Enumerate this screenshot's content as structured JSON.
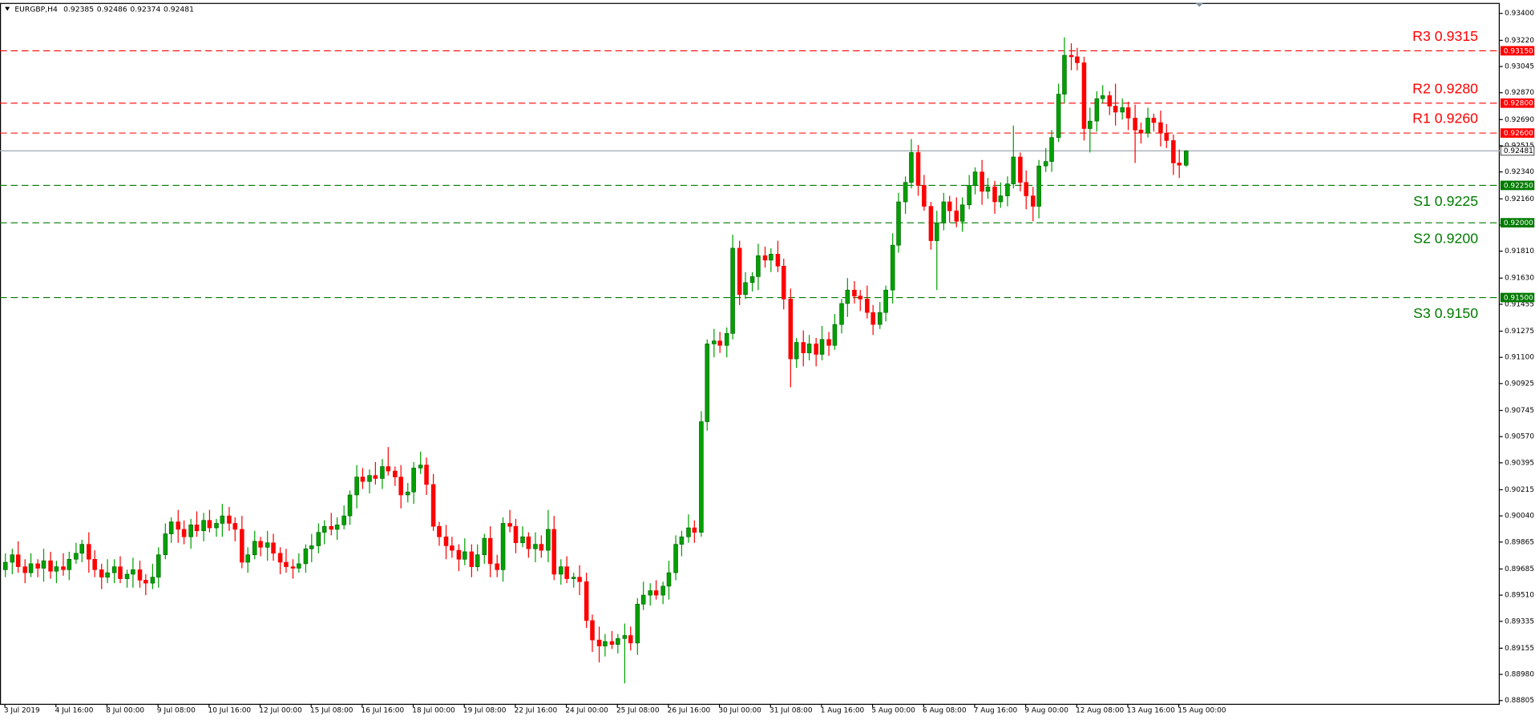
{
  "chart_data": {
    "type": "candlestick",
    "title": "EURGBP,H4",
    "up_color": "#00a000",
    "down_color": "#ff0000",
    "xlim": [
      -0.77,
      234.3
    ],
    "ylim": [
      0.8878,
      0.9347
    ],
    "xticks": [
      {
        "value": 0,
        "label": "3 Jul 2019"
      },
      {
        "value": 8,
        "label": "4 Jul 16:00"
      },
      {
        "value": 16,
        "label": "8 Jul 00:00"
      },
      {
        "value": 24,
        "label": "9 Jul 08:00"
      },
      {
        "value": 32,
        "label": "10 Jul 16:00"
      },
      {
        "value": 40,
        "label": "12 Jul 00:00"
      },
      {
        "value": 48,
        "label": "15 Jul 08:00"
      },
      {
        "value": 56,
        "label": "16 Jul 16:00"
      },
      {
        "value": 64,
        "label": "18 Jul 00:00"
      },
      {
        "value": 72,
        "label": "19 Jul 08:00"
      },
      {
        "value": 80,
        "label": "22 Jul 16:00"
      },
      {
        "value": 88,
        "label": "24 Jul 00:00"
      },
      {
        "value": 96,
        "label": "25 Jul 08:00"
      },
      {
        "value": 104,
        "label": "26 Jul 16:00"
      },
      {
        "value": 112,
        "label": "30 Jul 00:00"
      },
      {
        "value": 120,
        "label": "31 Jul 08:00"
      },
      {
        "value": 128,
        "label": "1 Aug 16:00"
      },
      {
        "value": 136,
        "label": "5 Aug 00:00"
      },
      {
        "value": 144,
        "label": "6 Aug 08:00"
      },
      {
        "value": 152,
        "label": "7 Aug 16:00"
      },
      {
        "value": 160,
        "label": "9 Aug 00:00"
      },
      {
        "value": 168,
        "label": "12 Aug 08:00"
      },
      {
        "value": 176,
        "label": "13 Aug 16:00"
      },
      {
        "value": 184,
        "label": "15 Aug 00:00"
      }
    ],
    "yticks": [
      {
        "value": 0.934,
        "label": "0.93400"
      },
      {
        "value": 0.9322,
        "label": "0.93220"
      },
      {
        "value": 0.93045,
        "label": "0.93045"
      },
      {
        "value": 0.9287,
        "label": "0.92870"
      },
      {
        "value": 0.9269,
        "label": "0.92690"
      },
      {
        "value": 0.92515,
        "label": "0.92515"
      },
      {
        "value": 0.9234,
        "label": "0.92340"
      },
      {
        "value": 0.9216,
        "label": "0.92160"
      },
      {
        "value": 0.91985,
        "label": "0.91985"
      },
      {
        "value": 0.9181,
        "label": "0.91810"
      },
      {
        "value": 0.9163,
        "label": "0.91630"
      },
      {
        "value": 0.91455,
        "label": "0.91455"
      },
      {
        "value": 0.91275,
        "label": "0.91275"
      },
      {
        "value": 0.911,
        "label": "0.91100"
      },
      {
        "value": 0.90925,
        "label": "0.90925"
      },
      {
        "value": 0.90745,
        "label": "0.90745"
      },
      {
        "value": 0.9057,
        "label": "0.90570"
      },
      {
        "value": 0.90395,
        "label": "0.90395"
      },
      {
        "value": 0.90215,
        "label": "0.90215"
      },
      {
        "value": 0.9004,
        "label": "0.90040"
      },
      {
        "value": 0.89865,
        "label": "0.89865"
      },
      {
        "value": 0.89685,
        "label": "0.89685"
      },
      {
        "value": 0.8951,
        "label": "0.89510"
      },
      {
        "value": 0.89335,
        "label": "0.89335"
      },
      {
        "value": 0.89155,
        "label": "0.89155"
      },
      {
        "value": 0.8898,
        "label": "0.88980"
      },
      {
        "value": 0.88805,
        "label": "0.88805"
      }
    ],
    "price_line": {
      "value": 0.92481,
      "label": "0.92481",
      "color": "#a0a8b0"
    },
    "levels": [
      {
        "label": "R3 0.9315",
        "value": 0.9315,
        "value_label": "0.93150",
        "color": "#ff0000"
      },
      {
        "label": "R2 0.9280",
        "value": 0.928,
        "value_label": "0.92800",
        "color": "#ff0000"
      },
      {
        "label": "R1 0.9260",
        "value": 0.926,
        "value_label": "0.92600",
        "color": "#ff0000"
      },
      {
        "label": "S1 0.9225",
        "value": 0.9225,
        "value_label": "0.92250",
        "color": "#007a00"
      },
      {
        "label": "S2 0.9200",
        "value": 0.92,
        "value_label": "0.92000",
        "color": "#007a00"
      },
      {
        "label": "S3 0.9150",
        "value": 0.915,
        "value_label": "0.91500",
        "color": "#007a00"
      }
    ],
    "candles": [
      [
        0.8968,
        0.8979,
        0.8963,
        0.8973
      ],
      [
        0.8973,
        0.8982,
        0.8965,
        0.8978
      ],
      [
        0.8978,
        0.8987,
        0.8966,
        0.897
      ],
      [
        0.897,
        0.8975,
        0.8959,
        0.8966
      ],
      [
        0.8966,
        0.8979,
        0.8963,
        0.8972
      ],
      [
        0.8972,
        0.8975,
        0.8963,
        0.8969
      ],
      [
        0.8969,
        0.8982,
        0.896,
        0.8974
      ],
      [
        0.8974,
        0.898,
        0.8962,
        0.8967
      ],
      [
        0.8967,
        0.8974,
        0.8959,
        0.897
      ],
      [
        0.897,
        0.8979,
        0.8964,
        0.8968
      ],
      [
        0.8968,
        0.898,
        0.8961,
        0.8975
      ],
      [
        0.8975,
        0.8986,
        0.8972,
        0.8979
      ],
      [
        0.8979,
        0.8988,
        0.8973,
        0.8985
      ],
      [
        0.8985,
        0.8993,
        0.8966,
        0.8975
      ],
      [
        0.8975,
        0.8981,
        0.8963,
        0.8968
      ],
      [
        0.8968,
        0.8972,
        0.8955,
        0.8963
      ],
      [
        0.8963,
        0.8975,
        0.8959,
        0.8966
      ],
      [
        0.8966,
        0.8975,
        0.8959,
        0.897
      ],
      [
        0.897,
        0.8977,
        0.8959,
        0.8962
      ],
      [
        0.8962,
        0.8968,
        0.8956,
        0.8965
      ],
      [
        0.8965,
        0.8976,
        0.8956,
        0.8968
      ],
      [
        0.8968,
        0.8974,
        0.8956,
        0.8961
      ],
      [
        0.8961,
        0.8965,
        0.8951,
        0.8959
      ],
      [
        0.8959,
        0.8972,
        0.8955,
        0.8963
      ],
      [
        0.8963,
        0.8983,
        0.8956,
        0.8978
      ],
      [
        0.8978,
        0.8999,
        0.8975,
        0.8992
      ],
      [
        0.8992,
        0.9003,
        0.8986,
        0.9
      ],
      [
        0.9,
        0.9008,
        0.8986,
        0.8995
      ],
      [
        0.8995,
        0.9001,
        0.8985,
        0.899
      ],
      [
        0.899,
        0.9002,
        0.8982,
        0.8998
      ],
      [
        0.8998,
        0.9007,
        0.899,
        0.8994
      ],
      [
        0.8994,
        0.9006,
        0.8987,
        0.9001
      ],
      [
        0.9001,
        0.9008,
        0.8993,
        0.8996
      ],
      [
        0.8996,
        0.9002,
        0.899,
        0.8999
      ],
      [
        0.8999,
        0.9012,
        0.899,
        0.9004
      ],
      [
        0.9004,
        0.901,
        0.8994,
        0.8999
      ],
      [
        0.8999,
        0.9003,
        0.8987,
        0.8995
      ],
      [
        0.8995,
        0.9004,
        0.8969,
        0.8973
      ],
      [
        0.8973,
        0.8983,
        0.8966,
        0.8978
      ],
      [
        0.8978,
        0.8994,
        0.8975,
        0.8987
      ],
      [
        0.8987,
        0.899,
        0.8977,
        0.8983
      ],
      [
        0.8983,
        0.8994,
        0.8974,
        0.8986
      ],
      [
        0.8986,
        0.8992,
        0.8974,
        0.8979
      ],
      [
        0.8979,
        0.8983,
        0.8965,
        0.8973
      ],
      [
        0.8973,
        0.8982,
        0.8966,
        0.897
      ],
      [
        0.897,
        0.8975,
        0.8962,
        0.8969
      ],
      [
        0.8969,
        0.8979,
        0.8966,
        0.8972
      ],
      [
        0.8972,
        0.8985,
        0.8966,
        0.8982
      ],
      [
        0.8982,
        0.8992,
        0.8973,
        0.8984
      ],
      [
        0.8984,
        0.8999,
        0.8979,
        0.8993
      ],
      [
        0.8993,
        0.9001,
        0.8985,
        0.8997
      ],
      [
        0.8997,
        0.9006,
        0.8991,
        0.8995
      ],
      [
        0.8995,
        0.9003,
        0.8988,
        0.8998
      ],
      [
        0.8998,
        0.9011,
        0.8995,
        0.9004
      ],
      [
        0.9004,
        0.9021,
        0.8998,
        0.9018
      ],
      [
        0.9018,
        0.9038,
        0.9009,
        0.903
      ],
      [
        0.903,
        0.9036,
        0.9022,
        0.9027
      ],
      [
        0.9027,
        0.9035,
        0.9019,
        0.9031
      ],
      [
        0.9031,
        0.904,
        0.9025,
        0.9029
      ],
      [
        0.9029,
        0.9042,
        0.9022,
        0.9037
      ],
      [
        0.9037,
        0.905,
        0.9031,
        0.9034
      ],
      [
        0.9034,
        0.9037,
        0.9024,
        0.903
      ],
      [
        0.903,
        0.9038,
        0.9009,
        0.9018
      ],
      [
        0.9018,
        0.9026,
        0.9013,
        0.902
      ],
      [
        0.902,
        0.904,
        0.9012,
        0.9036
      ],
      [
        0.9036,
        0.9047,
        0.9032,
        0.9038
      ],
      [
        0.9038,
        0.9043,
        0.9018,
        0.9025
      ],
      [
        0.9025,
        0.9032,
        0.8994,
        0.8997
      ],
      [
        0.8997,
        0.9,
        0.8984,
        0.899
      ],
      [
        0.899,
        0.8998,
        0.8975,
        0.8984
      ],
      [
        0.8984,
        0.899,
        0.8976,
        0.8981
      ],
      [
        0.8981,
        0.8985,
        0.8967,
        0.8975
      ],
      [
        0.8975,
        0.8989,
        0.8971,
        0.898
      ],
      [
        0.898,
        0.8985,
        0.8963,
        0.897
      ],
      [
        0.897,
        0.8985,
        0.8967,
        0.8978
      ],
      [
        0.8978,
        0.8992,
        0.8972,
        0.8989
      ],
      [
        0.8989,
        0.8997,
        0.8963,
        0.8972
      ],
      [
        0.8972,
        0.8978,
        0.8963,
        0.8968
      ],
      [
        0.8968,
        0.9003,
        0.896,
        0.8999
      ],
      [
        0.8999,
        0.9008,
        0.8993,
        0.8997
      ],
      [
        0.8997,
        0.9002,
        0.8979,
        0.8986
      ],
      [
        0.8986,
        0.8997,
        0.8983,
        0.899
      ],
      [
        0.899,
        0.8993,
        0.8976,
        0.8982
      ],
      [
        0.8982,
        0.8993,
        0.8973,
        0.8985
      ],
      [
        0.8985,
        0.8991,
        0.8976,
        0.8981
      ],
      [
        0.8981,
        0.9008,
        0.8973,
        0.8995
      ],
      [
        0.8995,
        0.9004,
        0.8961,
        0.8965
      ],
      [
        0.8965,
        0.8975,
        0.8958,
        0.897
      ],
      [
        0.897,
        0.8977,
        0.8959,
        0.8962
      ],
      [
        0.8962,
        0.8966,
        0.8956,
        0.8963
      ],
      [
        0.8963,
        0.8971,
        0.8951,
        0.896
      ],
      [
        0.896,
        0.8966,
        0.8929,
        0.8934
      ],
      [
        0.8934,
        0.8938,
        0.8913,
        0.8921
      ],
      [
        0.8921,
        0.893,
        0.8906,
        0.8917
      ],
      [
        0.8917,
        0.8925,
        0.891,
        0.892
      ],
      [
        0.892,
        0.8927,
        0.8915,
        0.8918
      ],
      [
        0.8918,
        0.8925,
        0.8912,
        0.8922
      ],
      [
        0.8922,
        0.8932,
        0.8892,
        0.8924
      ],
      [
        0.8924,
        0.893,
        0.8914,
        0.8919
      ],
      [
        0.8919,
        0.8949,
        0.8911,
        0.8945
      ],
      [
        0.8945,
        0.896,
        0.8941,
        0.8951
      ],
      [
        0.8951,
        0.8959,
        0.8944,
        0.8954
      ],
      [
        0.8954,
        0.8961,
        0.8948,
        0.8951
      ],
      [
        0.8951,
        0.896,
        0.8945,
        0.8957
      ],
      [
        0.8957,
        0.8974,
        0.8948,
        0.8966
      ],
      [
        0.8966,
        0.8991,
        0.8961,
        0.8985
      ],
      [
        0.8985,
        0.8994,
        0.8977,
        0.899
      ],
      [
        0.899,
        0.9005,
        0.8986,
        0.8996
      ],
      [
        0.8996,
        0.9001,
        0.8986,
        0.8993
      ],
      [
        0.8993,
        0.9074,
        0.899,
        0.9067
      ],
      [
        0.9067,
        0.9122,
        0.9061,
        0.9119
      ],
      [
        0.9119,
        0.9129,
        0.911,
        0.9121
      ],
      [
        0.9121,
        0.9127,
        0.9113,
        0.9118
      ],
      [
        0.9118,
        0.913,
        0.911,
        0.9126
      ],
      [
        0.9126,
        0.9192,
        0.9122,
        0.9183
      ],
      [
        0.9183,
        0.9188,
        0.9145,
        0.9152
      ],
      [
        0.9152,
        0.9167,
        0.9149,
        0.916
      ],
      [
        0.916,
        0.9167,
        0.9154,
        0.9164
      ],
      [
        0.9164,
        0.9186,
        0.9155,
        0.9178
      ],
      [
        0.9178,
        0.9184,
        0.917,
        0.9175
      ],
      [
        0.9175,
        0.9183,
        0.9167,
        0.9179
      ],
      [
        0.9179,
        0.9188,
        0.9167,
        0.9171
      ],
      [
        0.9171,
        0.9176,
        0.9142,
        0.9149
      ],
      [
        0.9149,
        0.9156,
        0.909,
        0.9109
      ],
      [
        0.9109,
        0.9123,
        0.9103,
        0.912
      ],
      [
        0.912,
        0.9128,
        0.9104,
        0.9113
      ],
      [
        0.9113,
        0.9125,
        0.9108,
        0.9119
      ],
      [
        0.9119,
        0.9123,
        0.9104,
        0.9112
      ],
      [
        0.9112,
        0.9131,
        0.9108,
        0.9122
      ],
      [
        0.9122,
        0.9127,
        0.9111,
        0.9118
      ],
      [
        0.9118,
        0.9139,
        0.9115,
        0.9132
      ],
      [
        0.9132,
        0.9149,
        0.9126,
        0.9146
      ],
      [
        0.9146,
        0.9163,
        0.9137,
        0.9155
      ],
      [
        0.9155,
        0.9161,
        0.9146,
        0.9151
      ],
      [
        0.9151,
        0.9155,
        0.9141,
        0.9149
      ],
      [
        0.9149,
        0.9158,
        0.9136,
        0.914
      ],
      [
        0.914,
        0.9145,
        0.9125,
        0.9132
      ],
      [
        0.9132,
        0.9147,
        0.9129,
        0.914
      ],
      [
        0.914,
        0.9158,
        0.9134,
        0.9155
      ],
      [
        0.9155,
        0.9193,
        0.9146,
        0.9185
      ],
      [
        0.9185,
        0.922,
        0.918,
        0.9214
      ],
      [
        0.9214,
        0.9231,
        0.9206,
        0.9227
      ],
      [
        0.9227,
        0.9256,
        0.9223,
        0.9247
      ],
      [
        0.9247,
        0.9252,
        0.9218,
        0.9225
      ],
      [
        0.9225,
        0.9232,
        0.9208,
        0.9211
      ],
      [
        0.9211,
        0.9214,
        0.9182,
        0.9188
      ],
      [
        0.9188,
        0.9208,
        0.9155,
        0.92
      ],
      [
        0.92,
        0.922,
        0.9195,
        0.9214
      ],
      [
        0.9214,
        0.9218,
        0.92,
        0.9208
      ],
      [
        0.9208,
        0.9217,
        0.9197,
        0.9201
      ],
      [
        0.9201,
        0.9217,
        0.9194,
        0.9212
      ],
      [
        0.9212,
        0.9232,
        0.9209,
        0.9225
      ],
      [
        0.9225,
        0.9237,
        0.9219,
        0.9234
      ],
      [
        0.9234,
        0.9242,
        0.9212,
        0.9221
      ],
      [
        0.9221,
        0.923,
        0.9216,
        0.9224
      ],
      [
        0.9224,
        0.9228,
        0.9206,
        0.9214
      ],
      [
        0.9214,
        0.9227,
        0.921,
        0.9218
      ],
      [
        0.9218,
        0.9231,
        0.9211,
        0.9226
      ],
      [
        0.9226,
        0.9265,
        0.9223,
        0.9244
      ],
      [
        0.9244,
        0.9247,
        0.9221,
        0.9227
      ],
      [
        0.9227,
        0.9235,
        0.9209,
        0.9218
      ],
      [
        0.9218,
        0.9224,
        0.9201,
        0.9211
      ],
      [
        0.9211,
        0.9242,
        0.9203,
        0.9238
      ],
      [
        0.9238,
        0.925,
        0.9234,
        0.9241
      ],
      [
        0.9241,
        0.9262,
        0.9234,
        0.9257
      ],
      [
        0.9257,
        0.9293,
        0.9254,
        0.9286
      ],
      [
        0.9286,
        0.9324,
        0.928,
        0.9312
      ],
      [
        0.9312,
        0.932,
        0.9302,
        0.9311
      ],
      [
        0.9311,
        0.9317,
        0.9302,
        0.9307
      ],
      [
        0.9307,
        0.9311,
        0.9255,
        0.9263
      ],
      [
        0.9263,
        0.9277,
        0.9247,
        0.9268
      ],
      [
        0.9268,
        0.9288,
        0.9261,
        0.9283
      ],
      [
        0.9283,
        0.9292,
        0.928,
        0.9285
      ],
      [
        0.9285,
        0.9288,
        0.9272,
        0.9278
      ],
      [
        0.9278,
        0.9293,
        0.9265,
        0.9274
      ],
      [
        0.9274,
        0.9283,
        0.9269,
        0.9277
      ],
      [
        0.9277,
        0.9281,
        0.9262,
        0.927
      ],
      [
        0.927,
        0.9279,
        0.924,
        0.9262
      ],
      [
        0.9262,
        0.9267,
        0.9253,
        0.926
      ],
      [
        0.926,
        0.9277,
        0.9257,
        0.927
      ],
      [
        0.927,
        0.9273,
        0.9261,
        0.9267
      ],
      [
        0.9267,
        0.9275,
        0.9251,
        0.926
      ],
      [
        0.926,
        0.9266,
        0.925,
        0.9255
      ],
      [
        0.9255,
        0.9259,
        0.9232,
        0.924
      ],
      [
        0.924,
        0.9249,
        0.923,
        0.92385
      ],
      [
        0.92385,
        0.92486,
        0.92374,
        0.92481
      ]
    ]
  }
}
